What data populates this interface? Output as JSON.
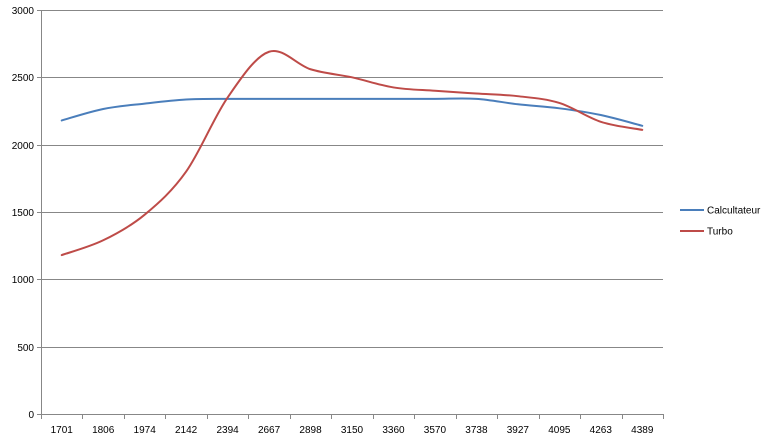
{
  "chart_data": {
    "type": "line",
    "categories": [
      "1701",
      "1806",
      "1974",
      "2142",
      "2394",
      "2667",
      "2898",
      "3150",
      "3360",
      "3570",
      "3738",
      "3927",
      "4095",
      "4263",
      "4389"
    ],
    "series": [
      {
        "name": "Calcultateur",
        "color": "#4a7ebb",
        "values": [
          2180,
          2265,
          2305,
          2335,
          2340,
          2340,
          2340,
          2340,
          2340,
          2340,
          2340,
          2300,
          2270,
          2220,
          2140
        ]
      },
      {
        "name": "Turbo",
        "color": "#be4b48",
        "values": [
          1180,
          1290,
          1480,
          1800,
          2350,
          2690,
          2560,
          2500,
          2425,
          2400,
          2380,
          2360,
          2310,
          2170,
          2110
        ]
      }
    ],
    "ylim": [
      0,
      3000
    ],
    "yticks": [
      "0",
      "500",
      "1000",
      "1500",
      "2000",
      "2500",
      "3000"
    ],
    "grid": true,
    "legend": "right"
  }
}
